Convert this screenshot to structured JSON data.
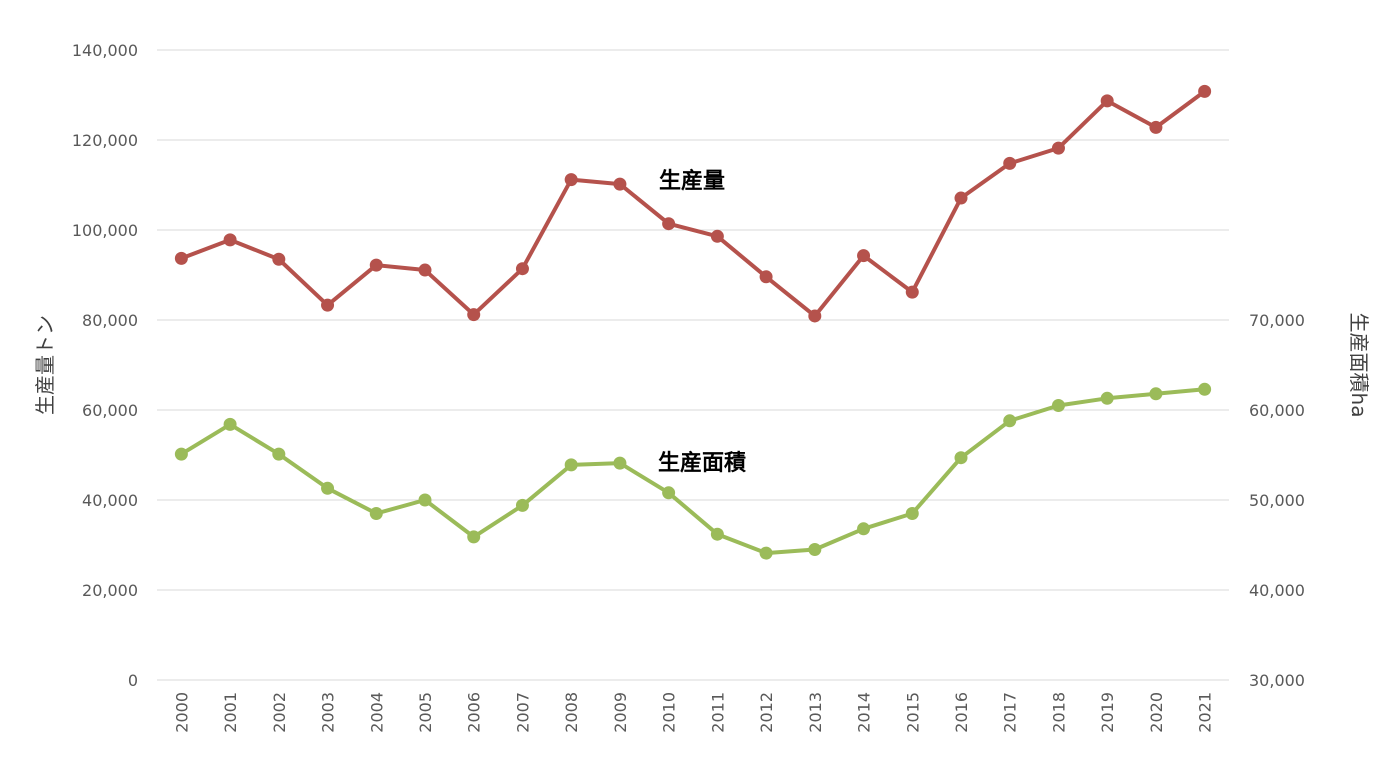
{
  "chart_data": {
    "type": "line",
    "x": [
      "2000",
      "2001",
      "2002",
      "2003",
      "2004",
      "2005",
      "2006",
      "2007",
      "2008",
      "2009",
      "2010",
      "2011",
      "2012",
      "2013",
      "2014",
      "2015",
      "2016",
      "2017",
      "2018",
      "2019",
      "2020",
      "2021"
    ],
    "y_left": {
      "label": "生産量トン",
      "ticks": [
        "0",
        "20,000",
        "40,000",
        "60,000",
        "80,000",
        "100,000",
        "120,000",
        "140,000"
      ],
      "range": [
        0,
        140000
      ]
    },
    "y_right": {
      "label": "生産面積ha",
      "ticks": [
        "30,000",
        "40,000",
        "50,000",
        "60,000",
        "70,000"
      ],
      "range": [
        30000,
        100000
      ]
    },
    "series": [
      {
        "name": "生産量",
        "axis": "left",
        "color": "#b5524c",
        "values": [
          93700,
          97800,
          93500,
          83300,
          92200,
          91100,
          81200,
          91400,
          111200,
          110200,
          101400,
          98600,
          89600,
          80900,
          94300,
          86200,
          107100,
          114800,
          118200,
          128700,
          122800,
          130800
        ]
      },
      {
        "name": "生産面積",
        "axis": "right",
        "color": "#9bbb59",
        "values": [
          55100,
          58400,
          55100,
          51300,
          48500,
          50000,
          45900,
          49400,
          53900,
          54100,
          50800,
          46200,
          44100,
          44500,
          46800,
          48500,
          54700,
          58800,
          60500,
          61300,
          61800,
          62300
        ]
      }
    ],
    "grid": "horizontal"
  }
}
